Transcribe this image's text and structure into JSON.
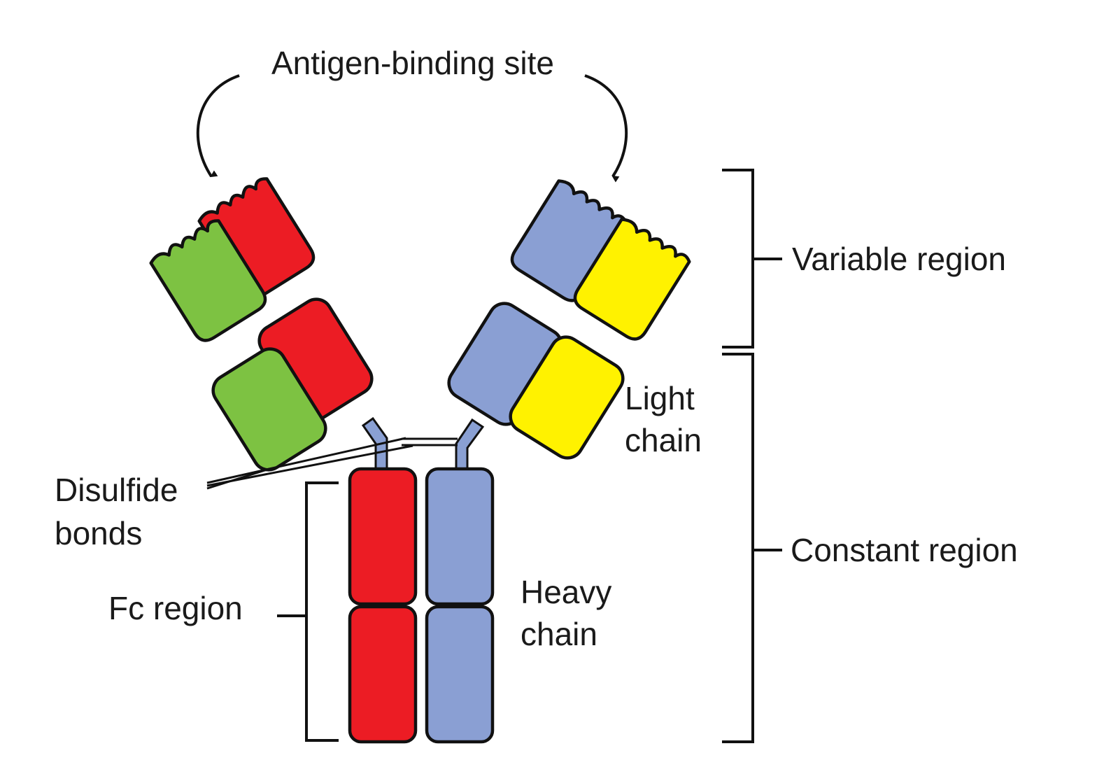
{
  "diagram": {
    "labels": {
      "antigen_binding_site": "Antigen-binding site",
      "variable_region": "Variable region",
      "light_chain": [
        "Light",
        "chain"
      ],
      "constant_region": "Constant region",
      "heavy_chain": [
        "Heavy",
        "chain"
      ],
      "disulfide_bonds": [
        "Disulfide",
        "bonds"
      ],
      "fc_region": "Fc region"
    },
    "colors": {
      "heavy_chain_a": "#ec1c24",
      "heavy_chain_b": "#8a9fd3",
      "light_chain_a": "#7dc242",
      "light_chain_b": "#fff200",
      "outline": "#111111"
    }
  }
}
